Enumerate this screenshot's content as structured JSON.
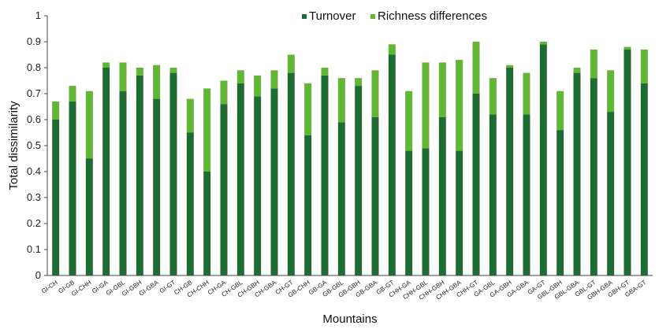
{
  "chart_data": {
    "type": "bar",
    "stacked": true,
    "xlabel": "Mountains",
    "ylabel": "Total dissimilarity",
    "ylim": [
      0,
      1
    ],
    "yticks": [
      "0",
      "0.1",
      "0.2",
      "0.3",
      "0.4",
      "0.5",
      "0.6",
      "0.7",
      "0.8",
      "0.9",
      "1"
    ],
    "grid": false,
    "legend": "top-center",
    "categories": [
      "GI-CH",
      "GI-GB",
      "GI-CHH",
      "GI-GA",
      "GI-GBL",
      "GI-GBH",
      "GI-GBA",
      "GI-GT",
      "CH-GB",
      "CH-CHH",
      "CH-GA",
      "CH-GBL",
      "CH-GBH",
      "CH-GBA",
      "CH-GT",
      "GB-CHH",
      "GB-GA",
      "GB-GBL",
      "GB-GBH",
      "GB-GBA",
      "GB-GT",
      "CHH-GA",
      "CHH-GBL",
      "CHH-GBH",
      "CHH-GBA",
      "CHH-GT",
      "GA-GBL",
      "GA-GBH",
      "GA-GBA",
      "GA-GT",
      "GBL-GBH",
      "GBL-GBA",
      "GBL-GT",
      "GBH-GBA",
      "GBH-GT",
      "GBA-GT"
    ],
    "series": [
      {
        "name": "Turnover",
        "color": "#1e6b34",
        "values": [
          0.6,
          0.67,
          0.45,
          0.8,
          0.71,
          0.77,
          0.68,
          0.78,
          0.55,
          0.4,
          0.66,
          0.74,
          0.69,
          0.72,
          0.78,
          0.54,
          0.77,
          0.59,
          0.73,
          0.61,
          0.85,
          0.48,
          0.49,
          0.61,
          0.48,
          0.7,
          0.62,
          0.8,
          0.62,
          0.89,
          0.56,
          0.78,
          0.76,
          0.63,
          0.87,
          0.74
        ]
      },
      {
        "name": "Richness differences",
        "color": "#62b535",
        "values": [
          0.07,
          0.06,
          0.26,
          0.02,
          0.11,
          0.03,
          0.13,
          0.02,
          0.13,
          0.32,
          0.09,
          0.05,
          0.08,
          0.07,
          0.07,
          0.2,
          0.03,
          0.17,
          0.03,
          0.18,
          0.04,
          0.23,
          0.33,
          0.21,
          0.35,
          0.2,
          0.14,
          0.01,
          0.16,
          0.01,
          0.15,
          0.02,
          0.11,
          0.16,
          0.01,
          0.13
        ]
      }
    ]
  }
}
